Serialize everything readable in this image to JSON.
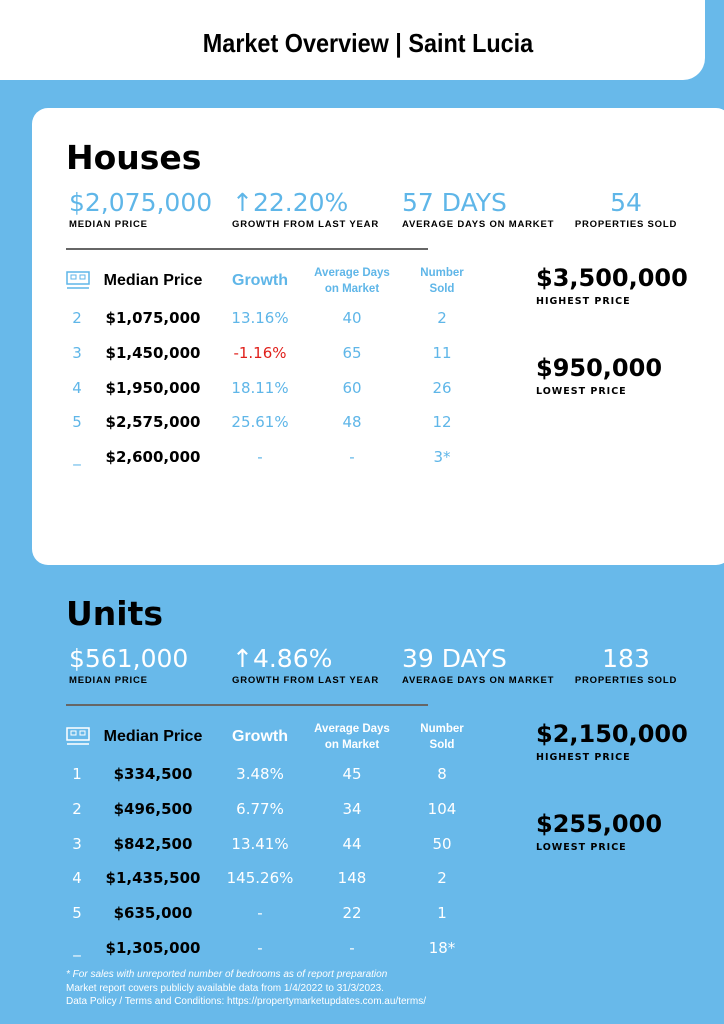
{
  "header": {
    "title": "Market Overview | Saint Lucia"
  },
  "colors": {
    "accent": "#5fb6e8",
    "background": "#68b9ea",
    "negative": "#e0201b"
  },
  "houses": {
    "title": "Houses",
    "stats": [
      {
        "value": "$2,075,000",
        "label": "MEDIAN PRICE"
      },
      {
        "value": "↑22.20%",
        "label": "GROWTH FROM LAST YEAR"
      },
      {
        "value": "57 DAYS",
        "label": "AVERAGE DAYS ON MARKET"
      },
      {
        "value": "54",
        "label": "PROPERTIES SOLD"
      }
    ],
    "columns": {
      "bed_icon": "bed-icon",
      "median": "Median Price",
      "growth": "Growth",
      "days": "Average Days on Market",
      "sold": "Number Sold"
    },
    "rows": [
      [
        "2",
        "$1,075,000",
        "13.16%",
        "40",
        "2"
      ],
      [
        "3",
        "$1,450,000",
        "-1.16%",
        "65",
        "11"
      ],
      [
        "4",
        "$1,950,000",
        "18.11%",
        "60",
        "26"
      ],
      [
        "5",
        "$2,575,000",
        "25.61%",
        "48",
        "12"
      ],
      [
        "_",
        "$2,600,000",
        "-",
        "-",
        "3*"
      ]
    ],
    "highest": {
      "value": "$3,500,000",
      "label": "HIGHEST PRICE"
    },
    "lowest": {
      "value": "$950,000",
      "label": "LOWEST PRICE"
    }
  },
  "units": {
    "title": "Units",
    "stats": [
      {
        "value": "$561,000",
        "label": "MEDIAN PRICE"
      },
      {
        "value": "↑4.86%",
        "label": "GROWTH FROM LAST YEAR"
      },
      {
        "value": "39 DAYS",
        "label": "AVERAGE DAYS ON MARKET"
      },
      {
        "value": "183",
        "label": "PROPERTIES SOLD"
      }
    ],
    "columns": {
      "bed_icon": "bed-icon",
      "median": "Median Price",
      "growth": "Growth",
      "days": "Average Days on Market",
      "sold": "Number Sold"
    },
    "rows": [
      [
        "1",
        "$334,500",
        "3.48%",
        "45",
        "8"
      ],
      [
        "2",
        "$496,500",
        "6.77%",
        "34",
        "104"
      ],
      [
        "3",
        "$842,500",
        "13.41%",
        "44",
        "50"
      ],
      [
        "4",
        "$1,435,500",
        "145.26%",
        "148",
        "2"
      ],
      [
        "5",
        "$635,000",
        "-",
        "22",
        "1"
      ],
      [
        "_",
        "$1,305,000",
        "-",
        "-",
        "18*"
      ]
    ],
    "highest": {
      "value": "$2,150,000",
      "label": "HIGHEST PRICE"
    },
    "lowest": {
      "value": "$255,000",
      "label": "LOWEST PRICE"
    }
  },
  "footer": [
    "* For sales with unreported number of bedrooms as of report preparation",
    "Market report covers publicly available data from 1/4/2022 to 31/3/2023.",
    "Data Policy / Terms and Conditions: https://propertymarketupdates.com.au/terms/"
  ]
}
